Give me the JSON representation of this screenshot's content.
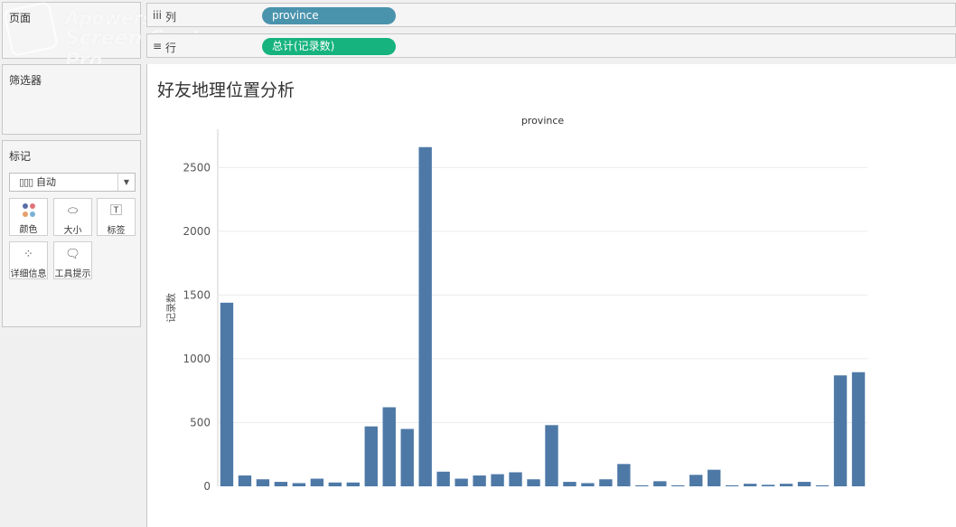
{
  "pages_panel": {
    "title": "页面"
  },
  "filters_panel": {
    "title": "筛选器"
  },
  "marks_panel": {
    "title": "标记",
    "mark_type": "自动",
    "buttons": {
      "color": "颜色",
      "size": "大小",
      "label": "标签",
      "detail": "详细信息",
      "tooltip": "工具提示"
    }
  },
  "shelves": {
    "columns": {
      "icon": "iii",
      "label": "列",
      "pill": "province"
    },
    "rows": {
      "icon": "≡",
      "label": "行",
      "pill": "总计(记录数)"
    }
  },
  "watermark": {
    "line1": "Apowersoft",
    "line2": "Screen Capture Pro"
  },
  "sheet": {
    "title": "好友地理位置分析"
  },
  "colors": {
    "bar": "#4e79a7",
    "columns_pill": "#4a93ad",
    "rows_pill": "#16b37f",
    "grid": "#ececec"
  },
  "chart_data": {
    "type": "bar",
    "title": "province",
    "ylabel": "记录数",
    "xlabel": "",
    "ylim": [
      0,
      2800
    ],
    "yticks": [
      0,
      500,
      1000,
      1500,
      2000,
      2500
    ],
    "values": [
      1440,
      85,
      55,
      35,
      25,
      60,
      30,
      30,
      470,
      620,
      450,
      2660,
      115,
      60,
      85,
      95,
      110,
      55,
      480,
      35,
      25,
      55,
      175,
      8,
      40,
      8,
      90,
      130,
      8,
      20,
      12,
      20,
      35,
      8,
      870,
      895
    ],
    "grid": true
  }
}
